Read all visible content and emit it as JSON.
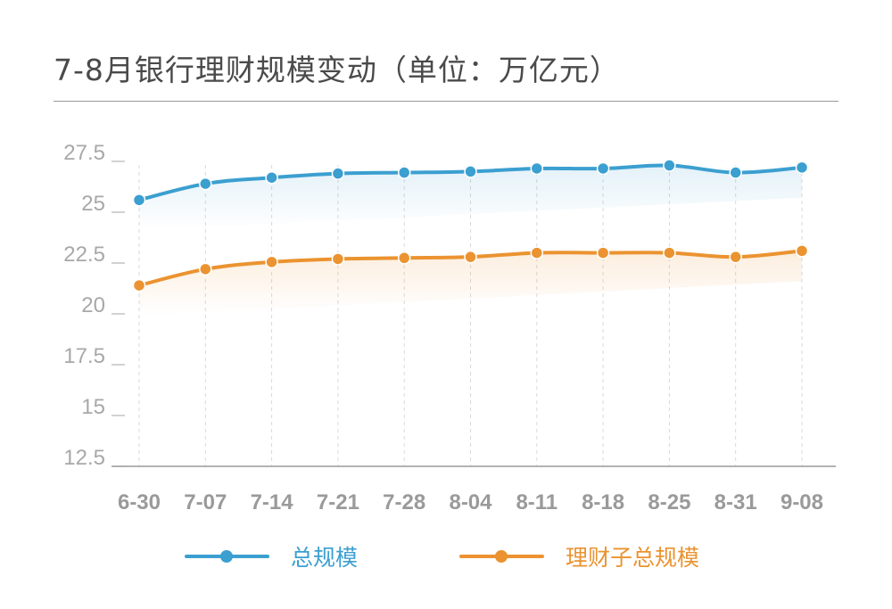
{
  "title": "7-8月银行理财规模变动（单位：万亿元）",
  "chart_data": {
    "type": "line",
    "categories": [
      "6-30",
      "7-07",
      "7-14",
      "7-21",
      "7-28",
      "8-04",
      "8-11",
      "8-18",
      "8-25",
      "8-31",
      "9-08"
    ],
    "series": [
      {
        "name": "总规模",
        "color": "#3b9fd0",
        "values": [
          25.6,
          26.4,
          26.7,
          26.9,
          26.95,
          27.0,
          27.15,
          27.15,
          27.3,
          26.95,
          27.2
        ]
      },
      {
        "name": "理财子总规模",
        "color": "#eb9330",
        "values": [
          21.4,
          22.2,
          22.55,
          22.7,
          22.75,
          22.8,
          23.0,
          23.0,
          23.0,
          22.8,
          23.1
        ]
      }
    ],
    "y_ticks": [
      "12.5",
      "15",
      "17.5",
      "20",
      "22.5",
      "25",
      "27.5"
    ],
    "ylim": [
      12.5,
      27.5
    ],
    "grid": "vertical-dashed",
    "legend_position": "bottom"
  }
}
